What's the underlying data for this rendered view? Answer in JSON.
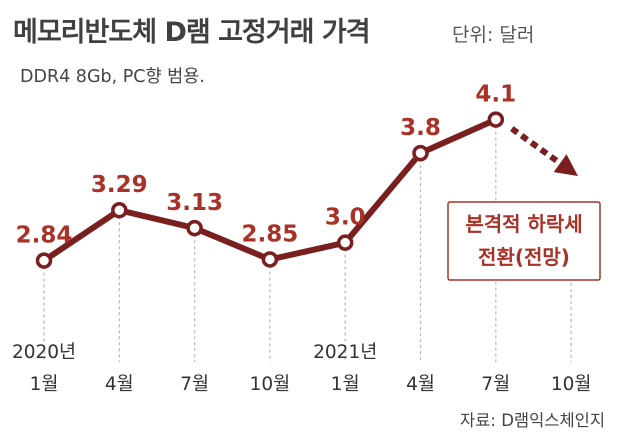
{
  "header": {
    "title": "메모리반도체 D램 고정거래 가격",
    "unit": "단위: 달러",
    "subtitle": "DDR4 8Gb, PC향 범용."
  },
  "footer": {
    "source": "자료: D램익스체인지"
  },
  "chart_data": {
    "type": "line",
    "title": "메모리반도체 D램 고정거래 가격",
    "subtitle": "DDR4 8Gb, PC향 범용.",
    "unit": "단위: 달러",
    "xlabel": "",
    "ylabel": "",
    "categories": [
      "1월",
      "4월",
      "7월",
      "10월",
      "1월",
      "4월",
      "7월",
      "10월"
    ],
    "year_labels": [
      {
        "index": 0,
        "label": "2020년"
      },
      {
        "index": 4,
        "label": "2021년"
      }
    ],
    "series": [
      {
        "values": [
          2.84,
          3.29,
          3.13,
          2.85,
          3.0,
          3.8,
          4.1,
          null
        ],
        "value_labels": [
          "2.84",
          "3.29",
          "3.13",
          "2.85",
          "3.0",
          "3.8",
          "4.1",
          ""
        ]
      }
    ],
    "forecast": {
      "from_index": 6,
      "to_index": 7,
      "direction": "down",
      "style": "dotted-arrow"
    },
    "annotation": [
      "본격적 하락세",
      "전환(전망)"
    ],
    "ylim": [
      2.3,
      4.4
    ],
    "grid": "vertical-dashed",
    "colors": {
      "line": "#7a1f1f",
      "marker_fill": "#ffffff",
      "label": "#a83228",
      "annotation_border": "#a83228",
      "annotation_text": "#a83228",
      "grid": "#bbbbbb",
      "text": "#333333"
    }
  }
}
